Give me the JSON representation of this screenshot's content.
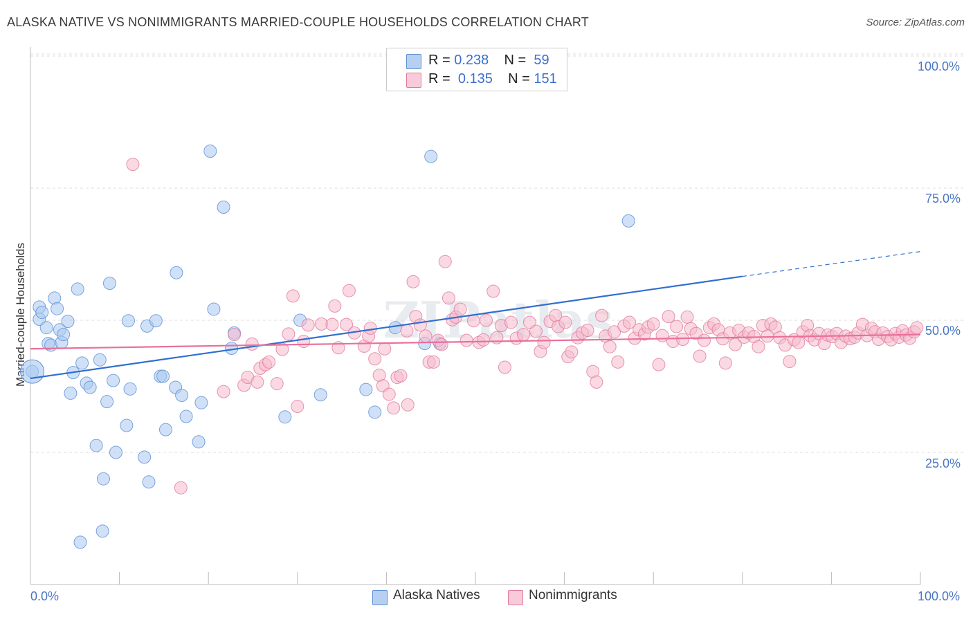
{
  "title": "ALASKA NATIVE VS NONIMMIGRANTS MARRIED-COUPLE HOUSEHOLDS CORRELATION CHART",
  "source": "Source: ZipAtlas.com",
  "watermark": "ZIPatlas",
  "colors": {
    "blue_fill": "#a9c8f0",
    "blue_stroke": "#5b8fd6",
    "blue_line": "#2f6fd1",
    "pink_fill": "#f6b9cc",
    "pink_stroke": "#e07a9c",
    "pink_line": "#e8709a",
    "tick_text": "#4a76c4",
    "grid": "#dddddd"
  },
  "legend": {
    "r_label": "R =",
    "n_label": "N =",
    "blue": {
      "r": "0.238",
      "n": "59"
    },
    "pink": {
      "r": "0.135",
      "n": "151"
    }
  },
  "chart_data": {
    "type": "scatter",
    "title": "ALASKA NATIVE VS NONIMMIGRANTS MARRIED-COUPLE HOUSEHOLDS CORRELATION CHART",
    "xlabel": "",
    "ylabel": "Married-couple Households",
    "xlim": [
      0,
      100
    ],
    "ylim": [
      0,
      105
    ],
    "x_tick_labels": [
      "0.0%",
      "100.0%"
    ],
    "y_ticks": [
      25,
      50,
      75,
      100
    ],
    "y_tick_labels": [
      "25.0%",
      "50.0%",
      "75.0%",
      "100.0%"
    ],
    "grid": true,
    "legend_position": "top-center",
    "series": [
      {
        "name": "Alaska Natives",
        "color": "#a9c8f0",
        "trend": {
          "x": [
            0,
            80
          ],
          "y": [
            39,
            58.3
          ],
          "dashed_to": [
            100,
            63
          ]
        },
        "points": [
          [
            0.2,
            40.3
          ],
          [
            1.0,
            50.2
          ],
          [
            1.0,
            52.5
          ],
          [
            1.3,
            51.5
          ],
          [
            1.8,
            48.6
          ],
          [
            2.0,
            45.6
          ],
          [
            2.3,
            45.3
          ],
          [
            2.7,
            54.2
          ],
          [
            3.0,
            52.2
          ],
          [
            3.3,
            48.2
          ],
          [
            3.5,
            45.8
          ],
          [
            3.7,
            47.3
          ],
          [
            4.2,
            49.8
          ],
          [
            4.5,
            36.2
          ],
          [
            4.8,
            40.1
          ],
          [
            5.3,
            55.9
          ],
          [
            5.8,
            41.9
          ],
          [
            6.3,
            38.1
          ],
          [
            6.7,
            37.3
          ],
          [
            7.4,
            26.3
          ],
          [
            7.8,
            42.5
          ],
          [
            8.2,
            20.0
          ],
          [
            8.6,
            34.6
          ],
          [
            8.9,
            57.0
          ],
          [
            9.3,
            38.6
          ],
          [
            9.6,
            25.0
          ],
          [
            10.8,
            30.1
          ],
          [
            11.0,
            49.9
          ],
          [
            11.2,
            37.0
          ],
          [
            12.8,
            24.1
          ],
          [
            13.1,
            48.9
          ],
          [
            13.3,
            19.4
          ],
          [
            14.1,
            49.9
          ],
          [
            14.6,
            39.4
          ],
          [
            14.9,
            39.4
          ],
          [
            15.2,
            29.3
          ],
          [
            16.3,
            37.3
          ],
          [
            16.4,
            59.0
          ],
          [
            17.0,
            35.8
          ],
          [
            17.5,
            31.8
          ],
          [
            18.9,
            27.0
          ],
          [
            19.2,
            34.4
          ],
          [
            20.2,
            82.0
          ],
          [
            20.6,
            52.1
          ],
          [
            21.7,
            71.4
          ],
          [
            22.6,
            44.7
          ],
          [
            22.9,
            47.6
          ],
          [
            28.6,
            31.7
          ],
          [
            30.3,
            50.0
          ],
          [
            32.6,
            35.9
          ],
          [
            37.7,
            36.9
          ],
          [
            38.7,
            32.6
          ],
          [
            41.0,
            48.6
          ],
          [
            44.3,
            45.6
          ],
          [
            45.0,
            81.0
          ],
          [
            46.0,
            45.6
          ],
          [
            67.2,
            68.8
          ],
          [
            5.6,
            8.0
          ],
          [
            8.1,
            10.1
          ]
        ]
      },
      {
        "name": "Nonimmigrants",
        "color": "#f6b9cc",
        "trend": {
          "x": [
            0,
            100
          ],
          "y": [
            44.6,
            47.3
          ]
        },
        "points": [
          [
            11.5,
            79.5
          ],
          [
            16.9,
            18.3
          ],
          [
            21.7,
            36.5
          ],
          [
            22.9,
            47.3
          ],
          [
            24.0,
            37.7
          ],
          [
            24.4,
            39.2
          ],
          [
            24.9,
            45.5
          ],
          [
            25.5,
            38.3
          ],
          [
            25.8,
            40.9
          ],
          [
            26.4,
            41.6
          ],
          [
            26.8,
            42.1
          ],
          [
            27.7,
            38.0
          ],
          [
            28.3,
            44.5
          ],
          [
            29.0,
            47.4
          ],
          [
            29.5,
            54.6
          ],
          [
            30.0,
            33.7
          ],
          [
            30.7,
            46.0
          ],
          [
            31.2,
            49.1
          ],
          [
            32.7,
            49.3
          ],
          [
            33.9,
            49.2
          ],
          [
            34.2,
            52.7
          ],
          [
            34.6,
            44.8
          ],
          [
            35.5,
            49.2
          ],
          [
            35.8,
            55.6
          ],
          [
            36.4,
            47.6
          ],
          [
            37.5,
            45.1
          ],
          [
            38.0,
            47.0
          ],
          [
            38.2,
            48.5
          ],
          [
            38.7,
            42.7
          ],
          [
            39.2,
            39.6
          ],
          [
            39.6,
            37.6
          ],
          [
            39.8,
            44.6
          ],
          [
            40.3,
            36.0
          ],
          [
            40.8,
            33.4
          ],
          [
            41.2,
            39.2
          ],
          [
            41.6,
            39.5
          ],
          [
            42.3,
            48.0
          ],
          [
            42.4,
            34.0
          ],
          [
            43.0,
            57.3
          ],
          [
            43.3,
            50.7
          ],
          [
            43.8,
            49.1
          ],
          [
            44.4,
            47.0
          ],
          [
            44.8,
            42.1
          ],
          [
            45.3,
            42.1
          ],
          [
            45.8,
            46.2
          ],
          [
            46.2,
            45.4
          ],
          [
            46.6,
            61.1
          ],
          [
            47.0,
            54.2
          ],
          [
            47.4,
            50.1
          ],
          [
            47.8,
            50.6
          ],
          [
            48.3,
            52.1
          ],
          [
            49.0,
            46.2
          ],
          [
            49.8,
            49.9
          ],
          [
            50.4,
            45.8
          ],
          [
            50.9,
            46.3
          ],
          [
            51.2,
            50.0
          ],
          [
            52.0,
            55.5
          ],
          [
            52.4,
            46.7
          ],
          [
            52.9,
            49.0
          ],
          [
            53.3,
            41.1
          ],
          [
            54.0,
            49.6
          ],
          [
            54.6,
            46.6
          ],
          [
            55.4,
            47.3
          ],
          [
            56.1,
            49.6
          ],
          [
            56.8,
            47.9
          ],
          [
            57.3,
            44.1
          ],
          [
            57.7,
            45.8
          ],
          [
            58.4,
            49.8
          ],
          [
            59.0,
            50.9
          ],
          [
            59.3,
            48.8
          ],
          [
            60.1,
            49.6
          ],
          [
            60.4,
            43.1
          ],
          [
            60.8,
            44.0
          ],
          [
            61.5,
            46.7
          ],
          [
            62.0,
            47.6
          ],
          [
            62.6,
            48.1
          ],
          [
            63.2,
            40.3
          ],
          [
            63.6,
            38.3
          ],
          [
            64.2,
            50.9
          ],
          [
            64.6,
            47.0
          ],
          [
            65.1,
            45.0
          ],
          [
            65.6,
            47.8
          ],
          [
            66.0,
            42.1
          ],
          [
            66.7,
            48.9
          ],
          [
            67.3,
            49.6
          ],
          [
            67.9,
            46.6
          ],
          [
            68.4,
            48.2
          ],
          [
            69.0,
            47.4
          ],
          [
            69.4,
            48.7
          ],
          [
            70.0,
            49.3
          ],
          [
            70.6,
            41.6
          ],
          [
            71.0,
            47.1
          ],
          [
            71.7,
            50.7
          ],
          [
            72.2,
            46.0
          ],
          [
            72.6,
            48.8
          ],
          [
            73.3,
            46.4
          ],
          [
            73.8,
            50.6
          ],
          [
            74.2,
            48.4
          ],
          [
            74.8,
            47.5
          ],
          [
            75.2,
            43.2
          ],
          [
            75.7,
            46.2
          ],
          [
            76.3,
            48.6
          ],
          [
            76.8,
            49.3
          ],
          [
            77.3,
            48.2
          ],
          [
            77.8,
            46.5
          ],
          [
            78.1,
            41.9
          ],
          [
            78.6,
            47.6
          ],
          [
            79.2,
            45.4
          ],
          [
            79.6,
            48.1
          ],
          [
            80.2,
            46.8
          ],
          [
            80.7,
            47.6
          ],
          [
            81.3,
            46.9
          ],
          [
            81.8,
            45.0
          ],
          [
            82.3,
            49.0
          ],
          [
            82.8,
            47.0
          ],
          [
            83.2,
            49.3
          ],
          [
            83.7,
            48.7
          ],
          [
            84.2,
            46.7
          ],
          [
            84.8,
            45.3
          ],
          [
            85.3,
            42.2
          ],
          [
            85.8,
            46.3
          ],
          [
            86.3,
            45.8
          ],
          [
            86.8,
            47.8
          ],
          [
            87.3,
            49.0
          ],
          [
            87.6,
            47.1
          ],
          [
            88.1,
            46.3
          ],
          [
            88.6,
            47.5
          ],
          [
            89.2,
            45.6
          ],
          [
            89.6,
            47.2
          ],
          [
            90.1,
            46.9
          ],
          [
            90.6,
            47.5
          ],
          [
            91.1,
            45.8
          ],
          [
            91.6,
            47.0
          ],
          [
            92.1,
            46.5
          ],
          [
            92.6,
            46.8
          ],
          [
            93.0,
            47.6
          ],
          [
            93.5,
            49.2
          ],
          [
            94.0,
            47.1
          ],
          [
            94.5,
            48.5
          ],
          [
            94.9,
            47.8
          ],
          [
            95.3,
            46.4
          ],
          [
            95.8,
            47.6
          ],
          [
            96.3,
            46.9
          ],
          [
            96.7,
            46.3
          ],
          [
            97.2,
            47.5
          ],
          [
            97.6,
            46.8
          ],
          [
            98.0,
            48.0
          ],
          [
            98.4,
            47.2
          ],
          [
            98.8,
            46.6
          ],
          [
            99.3,
            47.8
          ],
          [
            99.6,
            48.6
          ]
        ]
      }
    ]
  }
}
